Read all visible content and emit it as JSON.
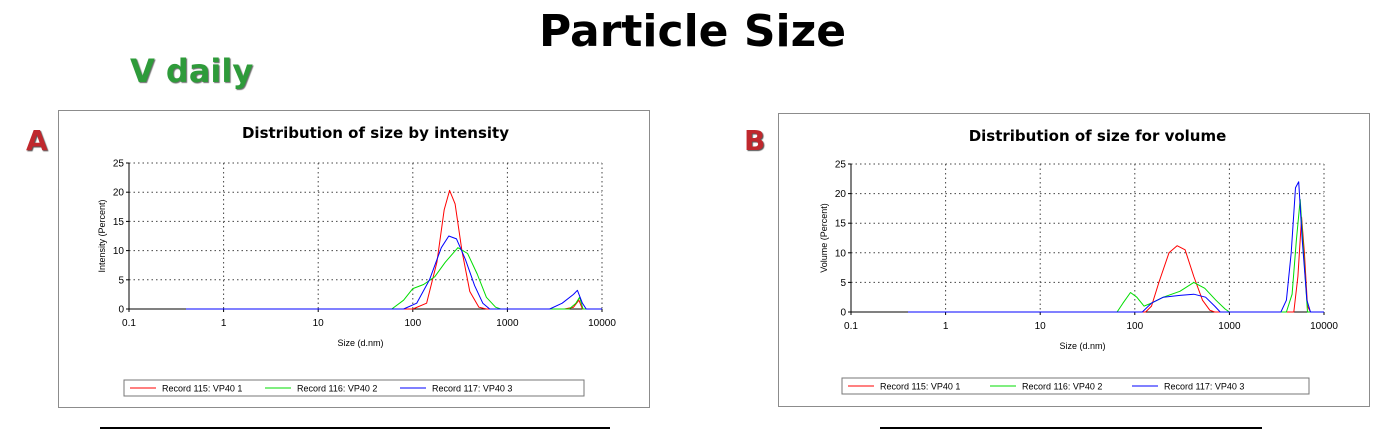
{
  "page": {
    "title": "Particle Size",
    "subtitle": "V daily",
    "panel_a_letter": "A",
    "panel_b_letter": "B"
  },
  "chart_data": [
    {
      "type": "line",
      "title": "Distribution of size by intensity",
      "xlabel": "Size (d.nm)",
      "ylabel": "Intensity (Percent)",
      "xscale": "log",
      "xlim": [
        0.1,
        10000
      ],
      "ylim": [
        0,
        25
      ],
      "x_ticks": [
        "0.1",
        "1",
        "10",
        "100",
        "1000",
        "10000"
      ],
      "y_ticks": [
        "0",
        "5",
        "10",
        "15",
        "20",
        "25"
      ],
      "grid": true,
      "legend": "bottom",
      "series": [
        {
          "name": "Record 115: VP40 1",
          "color": "#ff0000",
          "points": [
            [
              0.4,
              0
            ],
            [
              100,
              0
            ],
            [
              140,
              1
            ],
            [
              180,
              8
            ],
            [
              215,
              17
            ],
            [
              245,
              20.3
            ],
            [
              280,
              18
            ],
            [
              330,
              10
            ],
            [
              400,
              3
            ],
            [
              500,
              0.3
            ],
            [
              600,
              0
            ],
            [
              4000,
              0
            ],
            [
              5000,
              0.3
            ],
            [
              5700,
              1.5
            ],
            [
              6200,
              0
            ],
            [
              10000,
              0
            ]
          ]
        },
        {
          "name": "Record 116: VP40 2",
          "color": "#00dd00",
          "points": [
            [
              0.4,
              0
            ],
            [
              60,
              0
            ],
            [
              80,
              1.5
            ],
            [
              100,
              3.5
            ],
            [
              130,
              4.2
            ],
            [
              170,
              5.5
            ],
            [
              220,
              8
            ],
            [
              300,
              10.5
            ],
            [
              380,
              9.5
            ],
            [
              480,
              6
            ],
            [
              600,
              2
            ],
            [
              750,
              0.3
            ],
            [
              850,
              0
            ],
            [
              4500,
              0
            ],
            [
              5300,
              1
            ],
            [
              5800,
              2
            ],
            [
              6300,
              0
            ],
            [
              10000,
              0
            ]
          ]
        },
        {
          "name": "Record 117: VP40 3",
          "color": "#0000ff",
          "points": [
            [
              0.4,
              0
            ],
            [
              80,
              0
            ],
            [
              110,
              1
            ],
            [
              150,
              5
            ],
            [
              200,
              10.5
            ],
            [
              240,
              12.5
            ],
            [
              290,
              12
            ],
            [
              360,
              8.5
            ],
            [
              450,
              4
            ],
            [
              550,
              1
            ],
            [
              650,
              0
            ],
            [
              2800,
              0
            ],
            [
              3800,
              1
            ],
            [
              5000,
              2.5
            ],
            [
              5500,
              3.2
            ],
            [
              6200,
              1
            ],
            [
              6800,
              0
            ],
            [
              10000,
              0
            ]
          ]
        }
      ]
    },
    {
      "type": "line",
      "title": "Distribution of size for volume",
      "xlabel": "Size (d.nm)",
      "ylabel": "Volume (Percent)",
      "xscale": "log",
      "xlim": [
        0.1,
        10000
      ],
      "ylim": [
        0,
        25
      ],
      "x_ticks": [
        "0.1",
        "1",
        "10",
        "100",
        "1000",
        "10000"
      ],
      "y_ticks": [
        "0",
        "5",
        "10",
        "15",
        "20",
        "25"
      ],
      "grid": true,
      "legend": "bottom",
      "series": [
        {
          "name": "Record 115: VP40 1",
          "color": "#ff0000",
          "points": [
            [
              0.4,
              0
            ],
            [
              130,
              0
            ],
            [
              150,
              1
            ],
            [
              180,
              5
            ],
            [
              230,
              10
            ],
            [
              280,
              11.2
            ],
            [
              340,
              10.5
            ],
            [
              420,
              6
            ],
            [
              520,
              2
            ],
            [
              620,
              0.3
            ],
            [
              700,
              0
            ],
            [
              4800,
              0
            ],
            [
              5300,
              6
            ],
            [
              5800,
              16
            ],
            [
              6200,
              10
            ],
            [
              6700,
              1
            ],
            [
              7200,
              0
            ],
            [
              10000,
              0
            ]
          ]
        },
        {
          "name": "Record 116: VP40 2",
          "color": "#00dd00",
          "points": [
            [
              0.4,
              0
            ],
            [
              65,
              0
            ],
            [
              75,
              1.5
            ],
            [
              90,
              3.3
            ],
            [
              105,
              2.5
            ],
            [
              125,
              1
            ],
            [
              150,
              1.5
            ],
            [
              200,
              2.5
            ],
            [
              300,
              3.5
            ],
            [
              420,
              5
            ],
            [
              550,
              4
            ],
            [
              720,
              2
            ],
            [
              900,
              0.5
            ],
            [
              1000,
              0
            ],
            [
              4000,
              0
            ],
            [
              4600,
              3
            ],
            [
              5100,
              12
            ],
            [
              5600,
              19
            ],
            [
              6200,
              8
            ],
            [
              6700,
              0
            ],
            [
              10000,
              0
            ]
          ]
        },
        {
          "name": "Record 117: VP40 3",
          "color": "#0000ff",
          "points": [
            [
              0.4,
              0
            ],
            [
              120,
              0
            ],
            [
              150,
              1.5
            ],
            [
              200,
              2.5
            ],
            [
              300,
              2.8
            ],
            [
              420,
              3
            ],
            [
              560,
              2.5
            ],
            [
              700,
              1
            ],
            [
              800,
              0
            ],
            [
              3500,
              0
            ],
            [
              4000,
              2
            ],
            [
              4500,
              10
            ],
            [
              5000,
              21
            ],
            [
              5400,
              22
            ],
            [
              5900,
              12
            ],
            [
              6600,
              2
            ],
            [
              7200,
              0
            ],
            [
              10000,
              0
            ]
          ]
        }
      ]
    }
  ]
}
